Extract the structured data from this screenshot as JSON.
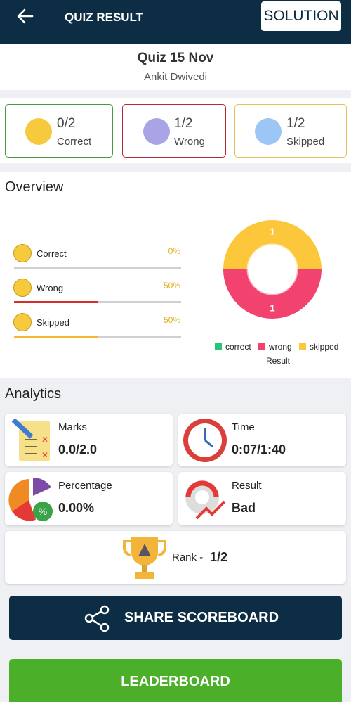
{
  "header": {
    "title": "QUIZ RESULT",
    "button": "SOLUTION"
  },
  "quiz": {
    "name": "Quiz 15 Nov",
    "user": "Ankit Dwivedi"
  },
  "summary": [
    {
      "value": "0/2",
      "label": "Correct"
    },
    {
      "value": "1/2",
      "label": "Wrong"
    },
    {
      "value": "1/2",
      "label": "Skipped"
    }
  ],
  "overview": {
    "title": "Overview",
    "labels": [
      "Correct",
      "Wrong",
      "Skipped"
    ],
    "values": [
      0,
      50,
      50
    ],
    "value_labels": [
      "0%",
      "50%",
      "50%"
    ],
    "colors": [
      "#2ecc71",
      "#d32f2f",
      "#f5b731"
    ],
    "xlim": [
      0,
      100
    ]
  },
  "chart_data": {
    "type": "donut",
    "title": "Result",
    "categories": [
      "correct",
      "wrong",
      "skipped"
    ],
    "values": [
      0,
      1,
      1
    ],
    "colors": [
      "#27c47a",
      "#f2426e",
      "#fcc73b"
    ]
  },
  "analytics": {
    "title": "Analytics",
    "cards": [
      {
        "label": "Marks",
        "value": "0.0/2.0"
      },
      {
        "label": "Time",
        "value": "0:07/1:40"
      },
      {
        "label": "Percentage",
        "value": "0.00%"
      },
      {
        "label": "Result",
        "value": "Bad"
      }
    ],
    "rank": {
      "label": "Rank -",
      "value": "1/2"
    }
  },
  "buttons": [
    "SHARE SCOREBOARD",
    "LEADERBOARD"
  ]
}
